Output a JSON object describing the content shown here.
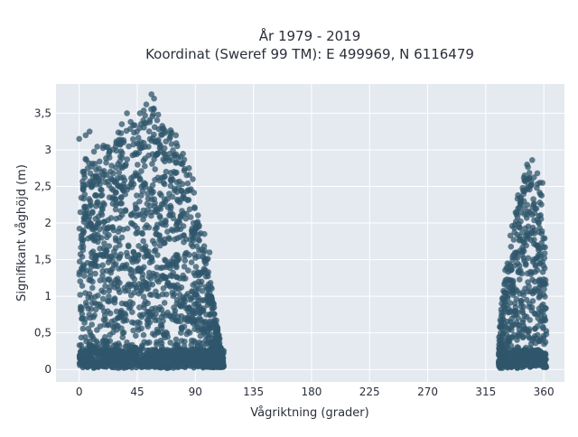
{
  "chart_data": {
    "type": "scatter",
    "title": "År 1979 - 2019",
    "subtitle": "Koordinat (Sweref 99 TM): E 499969, N 6116479",
    "xlabel": "Vågriktning (grader)",
    "ylabel": "Signifikant våghöjd (m)",
    "xlim": [
      -18,
      376
    ],
    "ylim": [
      -0.17,
      3.9
    ],
    "x_ticks": [
      0,
      45,
      90,
      135,
      180,
      225,
      270,
      315,
      360
    ],
    "x_tick_labels": [
      "0",
      "45",
      "90",
      "135",
      "180",
      "225",
      "270",
      "315",
      "360"
    ],
    "y_ticks": [
      0,
      0.5,
      1,
      1.5,
      2,
      2.5,
      3,
      3.5
    ],
    "y_tick_labels": [
      "0",
      "0,5",
      "1",
      "1,5",
      "2",
      "2,5",
      "3",
      "3,5"
    ],
    "grid": true,
    "background": "#e5e9f0",
    "marker_color": "#2f566b",
    "clusters": [
      {
        "direction_range": [
          0,
          112
        ],
        "envelope": [
          [
            0,
            3.1
          ],
          [
            5,
            2.9
          ],
          [
            10,
            3.0
          ],
          [
            15,
            3.15
          ],
          [
            20,
            3.05
          ],
          [
            25,
            3.1
          ],
          [
            30,
            3.25
          ],
          [
            35,
            3.3
          ],
          [
            40,
            3.45
          ],
          [
            45,
            3.5
          ],
          [
            50,
            3.55
          ],
          [
            55,
            3.6
          ],
          [
            60,
            3.55
          ],
          [
            65,
            3.4
          ],
          [
            70,
            3.3
          ],
          [
            75,
            3.2
          ],
          [
            80,
            3.0
          ],
          [
            85,
            2.7
          ],
          [
            90,
            2.35
          ],
          [
            95,
            1.8
          ],
          [
            100,
            1.5
          ],
          [
            105,
            0.85
          ],
          [
            108,
            0.5
          ],
          [
            112,
            0.15
          ]
        ]
      },
      {
        "direction_range": [
          325,
          362
        ],
        "envelope": [
          [
            325,
            0.4
          ],
          [
            328,
            1.05
          ],
          [
            331,
            1.5
          ],
          [
            334,
            1.85
          ],
          [
            337,
            2.2
          ],
          [
            340,
            2.35
          ],
          [
            343,
            2.55
          ],
          [
            346,
            2.7
          ],
          [
            349,
            2.85
          ],
          [
            352,
            2.75
          ],
          [
            355,
            2.65
          ],
          [
            358,
            2.55
          ],
          [
            360,
            2.5
          ],
          [
            362,
            1.0
          ]
        ]
      }
    ],
    "outliers": [
      [
        0,
        3.15
      ],
      [
        5,
        3.2
      ],
      [
        8,
        3.25
      ],
      [
        33,
        3.35
      ],
      [
        37,
        3.5
      ],
      [
        47,
        3.5
      ],
      [
        52,
        3.62
      ],
      [
        56,
        3.76
      ],
      [
        58,
        3.7
      ],
      [
        76,
        3.05
      ],
      [
        85,
        2.75
      ],
      [
        88,
        2.6
      ],
      [
        97,
        1.85
      ],
      [
        101,
        1.6
      ],
      [
        340,
        2.38
      ],
      [
        345,
        2.58
      ],
      [
        347,
        2.8
      ],
      [
        351,
        2.86
      ],
      [
        355,
        2.68
      ],
      [
        359,
        2.55
      ]
    ]
  }
}
